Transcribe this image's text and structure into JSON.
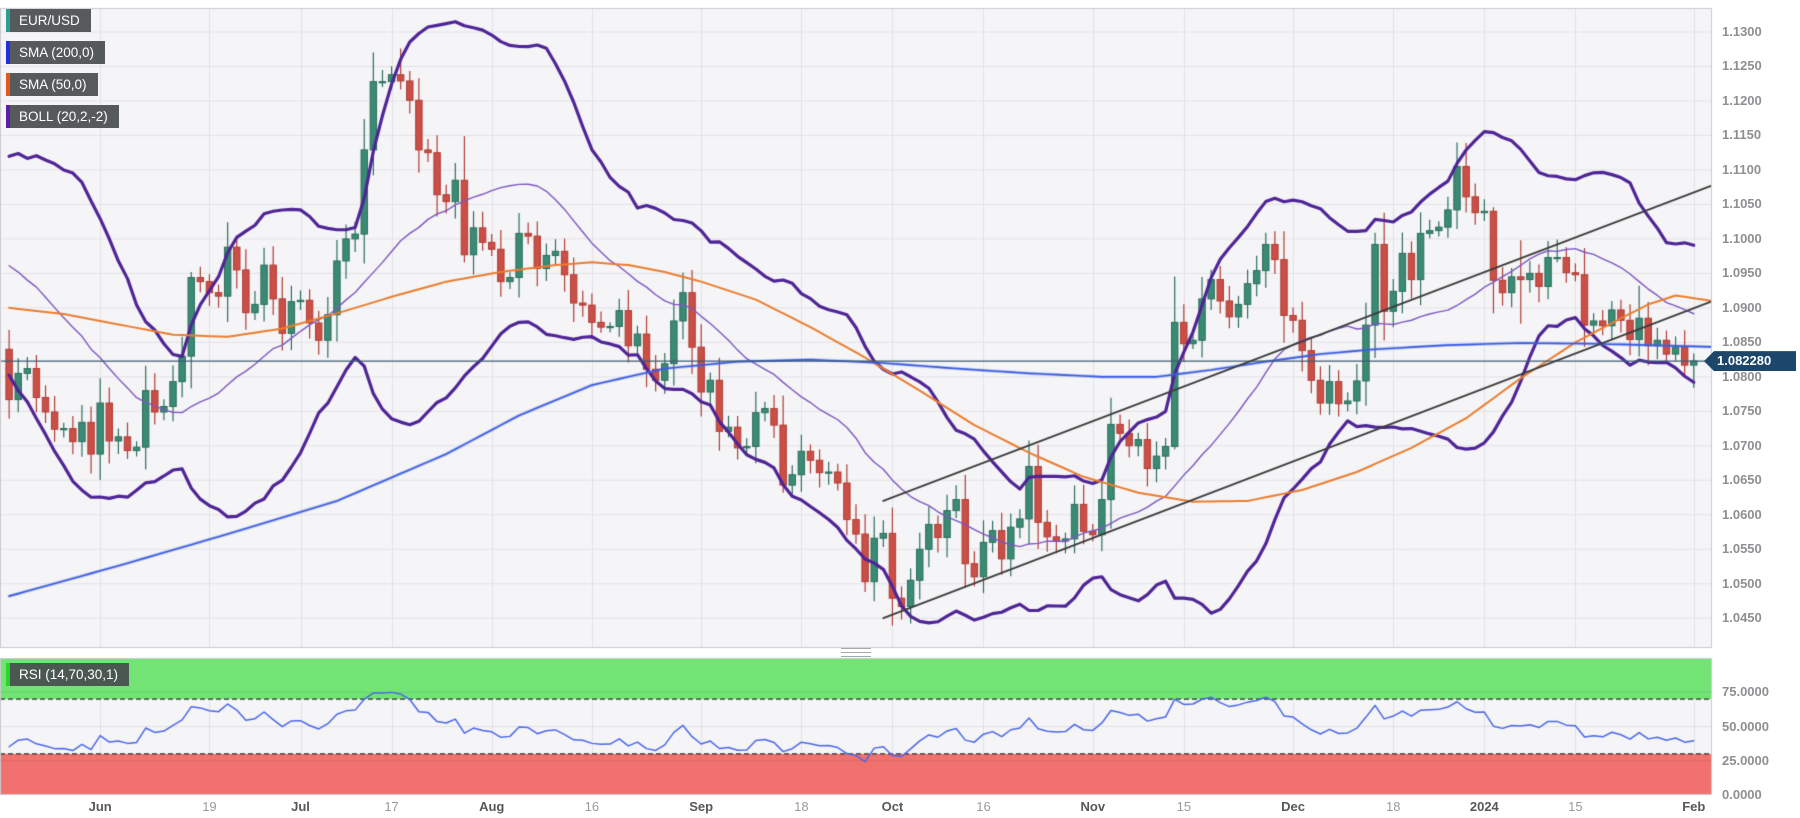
{
  "legend": {
    "symbol": {
      "label": "EUR/USD",
      "color": "#2b9e8f"
    },
    "sma200": {
      "label": "SMA (200,0)",
      "color": "#2430dd"
    },
    "sma50": {
      "label": "SMA (50,0)",
      "color": "#e4571d"
    },
    "boll": {
      "label": "BOLL (20,2,-2)",
      "color": "#5a21a8"
    },
    "rsi": {
      "label": "RSI (14,70,30,1)",
      "color": "#2bd42b"
    }
  },
  "price_axis": {
    "current": {
      "label": "1.082280",
      "value": 1.08228
    },
    "ticks": [
      {
        "label": "1.1300",
        "value": 1.13
      },
      {
        "label": "1.1250",
        "value": 1.125
      },
      {
        "label": "1.1200",
        "value": 1.12
      },
      {
        "label": "1.1150",
        "value": 1.115
      },
      {
        "label": "1.1100",
        "value": 1.11
      },
      {
        "label": "1.1050",
        "value": 1.105
      },
      {
        "label": "1.1000",
        "value": 1.1
      },
      {
        "label": "1.0950",
        "value": 1.095
      },
      {
        "label": "1.0900",
        "value": 1.09
      },
      {
        "label": "1.0850",
        "value": 1.085
      },
      {
        "label": "1.0800",
        "value": 1.08
      },
      {
        "label": "1.0750",
        "value": 1.075
      },
      {
        "label": "1.0700",
        "value": 1.07
      },
      {
        "label": "1.0650",
        "value": 1.065
      },
      {
        "label": "1.0600",
        "value": 1.06
      },
      {
        "label": "1.0550",
        "value": 1.055
      },
      {
        "label": "1.0500",
        "value": 1.05
      },
      {
        "label": "1.0450",
        "value": 1.045
      }
    ]
  },
  "rsi_axis": {
    "ticks": [
      {
        "label": "75.0000",
        "value": 75
      },
      {
        "label": "50.0000",
        "value": 50
      },
      {
        "label": "25.0000",
        "value": 25
      },
      {
        "label": "0.0000",
        "value": 0
      }
    ]
  },
  "time_axis": {
    "ticks": [
      {
        "label": "Jun",
        "index": 10,
        "major": true
      },
      {
        "label": "19",
        "index": 22,
        "major": false
      },
      {
        "label": "Jul",
        "index": 32,
        "major": true
      },
      {
        "label": "17",
        "index": 42,
        "major": false
      },
      {
        "label": "Aug",
        "index": 53,
        "major": true
      },
      {
        "label": "16",
        "index": 64,
        "major": false
      },
      {
        "label": "Sep",
        "index": 76,
        "major": true
      },
      {
        "label": "18",
        "index": 87,
        "major": false
      },
      {
        "label": "Oct",
        "index": 97,
        "major": true
      },
      {
        "label": "16",
        "index": 107,
        "major": false
      },
      {
        "label": "Nov",
        "index": 119,
        "major": true
      },
      {
        "label": "15",
        "index": 129,
        "major": false
      },
      {
        "label": "Dec",
        "index": 141,
        "major": true
      },
      {
        "label": "18",
        "index": 152,
        "major": false
      },
      {
        "label": "2024",
        "index": 162,
        "major": true
      },
      {
        "label": "15",
        "index": 172,
        "major": false
      },
      {
        "label": "Feb",
        "index": 185,
        "major": true
      }
    ]
  },
  "chart_data": {
    "type": "candlestick",
    "title": "EUR/USD daily with SMA(200), SMA(50), Bollinger(20,2) and RSI(14,70,30)",
    "pair": "EUR/USD",
    "ylim": [
      1.0407,
      1.1335
    ],
    "rsi_ylim": [
      0,
      100
    ],
    "closes": [
      1.0767,
      1.0805,
      1.0812,
      1.077,
      1.0749,
      1.0724,
      1.0725,
      1.0706,
      1.0734,
      1.0688,
      1.0762,
      1.0707,
      1.0713,
      1.0693,
      1.0698,
      1.078,
      1.0749,
      1.0757,
      1.0793,
      1.083,
      1.0944,
      1.0938,
      1.0922,
      1.0917,
      1.0988,
      1.0955,
      1.0893,
      1.0905,
      1.0962,
      1.0913,
      1.0863,
      1.0909,
      1.0911,
      1.0878,
      1.0853,
      1.089,
      1.0968,
      1.1,
      1.1007,
      1.1129,
      1.1228,
      1.1228,
      1.1238,
      1.1229,
      1.1201,
      1.1129,
      1.1125,
      1.1064,
      1.1054,
      1.1085,
      1.0977,
      1.1016,
      1.0995,
      1.0985,
      1.0938,
      1.0944,
      1.1008,
      1.1004,
      1.0957,
      1.0976,
      1.0982,
      1.0948,
      1.0907,
      1.0904,
      1.0879,
      1.0872,
      1.0873,
      1.0896,
      1.0845,
      1.0862,
      1.0811,
      1.0795,
      1.0819,
      1.0881,
      1.0922,
      1.0843,
      1.0778,
      1.0795,
      1.0721,
      1.0727,
      1.0697,
      1.0699,
      1.0748,
      1.0754,
      1.073,
      1.0643,
      1.0658,
      1.0692,
      1.0679,
      1.0661,
      1.0662,
      1.0646,
      1.0593,
      1.0572,
      1.0503,
      1.0566,
      1.0573,
      1.0479,
      1.0467,
      1.0505,
      1.055,
      1.0586,
      1.0567,
      1.0606,
      1.0622,
      1.0529,
      1.051,
      1.056,
      1.0577,
      1.0536,
      1.0582,
      1.0594,
      1.067,
      1.0589,
      1.0568,
      1.0562,
      1.0565,
      1.0615,
      1.0576,
      1.0571,
      1.0622,
      1.0731,
      1.0718,
      1.07,
      1.0709,
      1.0667,
      1.0685,
      1.0699,
      1.0879,
      1.0848,
      1.0853,
      1.0913,
      1.0941,
      1.091,
      1.0887,
      1.0905,
      1.0935,
      1.0954,
      1.0992,
      1.097,
      1.0889,
      1.0882,
      1.0838,
      1.0795,
      1.0762,
      1.0793,
      1.0761,
      1.0765,
      1.0794,
      1.0875,
      1.0992,
      1.0895,
      1.0924,
      1.0979,
      1.0941,
      1.1008,
      1.1012,
      1.1017,
      1.1042,
      1.1105,
      1.1061,
      1.1038,
      1.104,
      1.094,
      1.0922,
      1.0945,
      1.0941,
      1.095,
      1.0931,
      1.0973,
      1.0973,
      1.0951,
      1.0948,
      1.0875,
      1.0881,
      1.0874,
      1.0897,
      1.0882,
      1.0854,
      1.0885,
      1.0845,
      1.0853,
      1.0833,
      1.0843,
      1.0817,
      1.0823
    ],
    "seed_closes_before_window": [
      1.0927,
      1.0972,
      1.0954,
      1.0969,
      1.0989,
      1.1046,
      1.0973,
      1.104,
      1.1028,
      1.1019,
      1.0978,
      1.1,
      1.106,
      1.1013,
      1.1018,
      1.1005,
      1.0962,
      1.0981,
      1.0915,
      1.085,
      1.0875,
      1.0863,
      1.084
    ],
    "wick_overrides": {
      "20": {
        "high": 1.0952
      },
      "43": {
        "high": 1.1276
      },
      "50": {
        "high": 1.1149,
        "low": 1.0966
      },
      "85": {
        "low": 1.0632
      },
      "94": {
        "low": 1.0488
      },
      "98": {
        "low": 1.0448
      },
      "128": {
        "low": 1.0695
      },
      "138": {
        "high": 1.1009
      },
      "150": {
        "high": 1.1009
      },
      "160": {
        "high": 1.1139
      },
      "163": {
        "high": 1.1046,
        "low": 1.0892
      },
      "166": {
        "high": 1.0998,
        "low": 1.0877
      },
      "170": {
        "high": 1.0999
      },
      "179": {
        "high": 1.0932
      },
      "185": {
        "high": 1.0834,
        "low": 1.0784
      }
    },
    "indicators": {
      "bollinger": {
        "period": 20,
        "mult": 2
      },
      "rsi": {
        "period": 14,
        "overbought": 70,
        "oversold": 30
      },
      "sma200_points": [
        [
          0,
          1.0482
        ],
        [
          12,
          1.0526
        ],
        [
          24,
          1.0572
        ],
        [
          36,
          1.062
        ],
        [
          48,
          1.0688
        ],
        [
          56,
          1.0744
        ],
        [
          64,
          1.0788
        ],
        [
          72,
          1.0812
        ],
        [
          80,
          1.0822
        ],
        [
          88,
          1.0825
        ],
        [
          96,
          1.082
        ],
        [
          104,
          1.0812
        ],
        [
          112,
          1.0805
        ],
        [
          120,
          1.08
        ],
        [
          126,
          1.08
        ],
        [
          132,
          1.081
        ],
        [
          138,
          1.0822
        ],
        [
          144,
          1.0833
        ],
        [
          150,
          1.084
        ],
        [
          158,
          1.0846
        ],
        [
          166,
          1.0849
        ],
        [
          174,
          1.0848
        ],
        [
          180,
          1.0846
        ],
        [
          188,
          1.0843
        ]
      ],
      "sma50_points": [
        [
          0,
          1.09
        ],
        [
          6,
          1.0891
        ],
        [
          12,
          1.0876
        ],
        [
          18,
          1.0861
        ],
        [
          24,
          1.0858
        ],
        [
          30,
          1.087
        ],
        [
          36,
          1.0892
        ],
        [
          42,
          1.0916
        ],
        [
          48,
          1.0938
        ],
        [
          54,
          1.0952
        ],
        [
          60,
          1.0962
        ],
        [
          64,
          1.0966
        ],
        [
          68,
          1.0962
        ],
        [
          72,
          1.0952
        ],
        [
          76,
          1.0938
        ],
        [
          82,
          1.0912
        ],
        [
          88,
          1.0872
        ],
        [
          94,
          1.0828
        ],
        [
          100,
          1.078
        ],
        [
          106,
          1.073
        ],
        [
          112,
          1.069
        ],
        [
          118,
          1.0655
        ],
        [
          124,
          1.0632
        ],
        [
          130,
          1.0619
        ],
        [
          136,
          1.062
        ],
        [
          142,
          1.0636
        ],
        [
          148,
          1.0662
        ],
        [
          154,
          1.0697
        ],
        [
          160,
          1.074
        ],
        [
          166,
          1.0798
        ],
        [
          172,
          1.085
        ],
        [
          176,
          1.0878
        ],
        [
          180,
          1.0905
        ],
        [
          183,
          1.0918
        ],
        [
          188,
          1.0908
        ]
      ]
    },
    "trendlines": [
      {
        "from_index": 96,
        "from_price": 1.045,
        "to_index": 187.5,
        "to_price": 1.0912
      },
      {
        "from_index": 96,
        "from_price": 1.062,
        "to_index": 187.5,
        "to_price": 1.108
      }
    ],
    "colors": {
      "plot_bg": "#f5f5f7",
      "grid": "#e3e3e7",
      "pane_border": "#cbcbd0",
      "bull_fill": "#3a8a74",
      "bull_border": "#2c6e5c",
      "bear_fill": "#ca4f46",
      "bear_border": "#b03c35",
      "sma200": "#3b5be0",
      "sma200_halo": "rgba(80,110,235,0.30)",
      "sma50": "#ec7d2e",
      "boll_band": "#4f2496",
      "boll_mid": "#7e57c2",
      "trendline": "#3c3c3c",
      "current_price_line": "#3d5a71",
      "badge_bg": "#1d466b",
      "rsi_line": "#4a67ea",
      "rsi_green_band": "#72e476",
      "rsi_red_band": "#f0716d",
      "rsi_band_edge": "#2e2e2e"
    }
  }
}
